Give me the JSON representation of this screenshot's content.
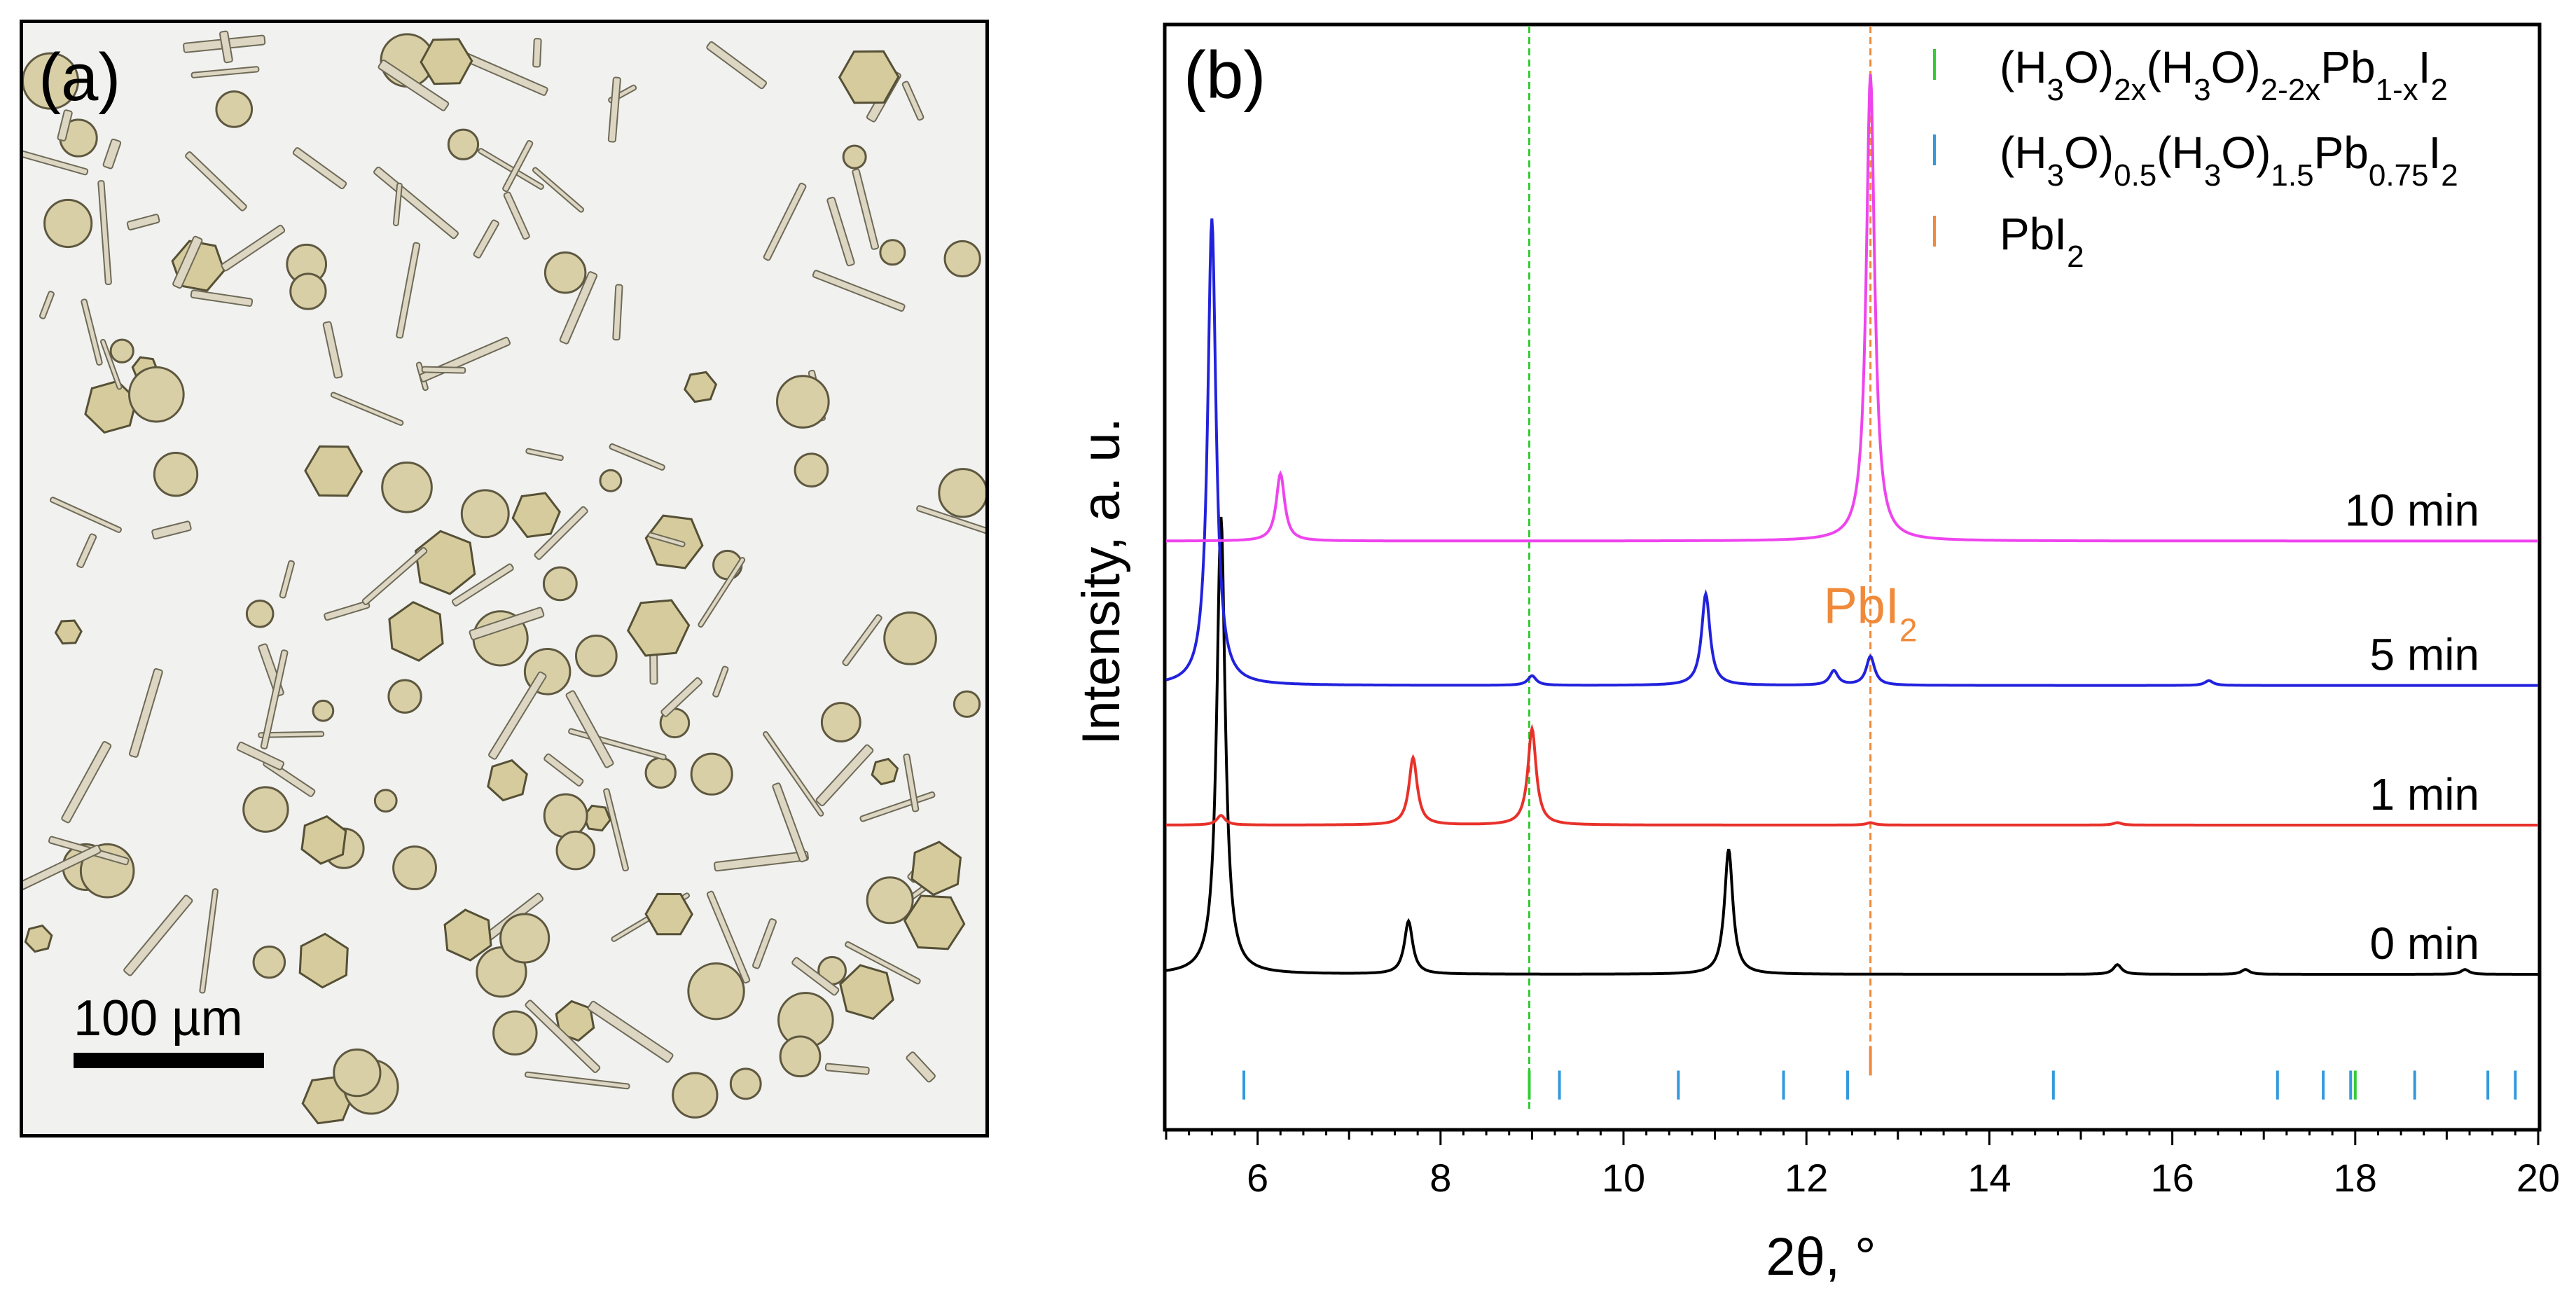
{
  "panel_a": {
    "label": "(a)",
    "scale_bar_label": "100 µm"
  },
  "chart_data": {
    "type": "line",
    "panel_label": "(b)",
    "xlabel": "2θ, °",
    "ylabel": "Intensity, a. u.",
    "xlim": [
      5,
      20
    ],
    "xticks": [
      6,
      8,
      10,
      12,
      14,
      16,
      18,
      20
    ],
    "grid": false,
    "legend_position": "top-right",
    "series": [
      {
        "name": "0 min",
        "color": "#000000",
        "baseline": 0,
        "peaks": [
          [
            5.6,
            0.95
          ],
          [
            7.65,
            0.11
          ],
          [
            11.15,
            0.26
          ],
          [
            15.4,
            0.02
          ],
          [
            16.8,
            0.01
          ],
          [
            19.2,
            0.01
          ]
        ]
      },
      {
        "name": "1 min",
        "color": "#e8312a",
        "baseline": 0.31,
        "peaks": [
          [
            5.6,
            0.02
          ],
          [
            7.7,
            0.14
          ],
          [
            9.0,
            0.2
          ],
          [
            12.7,
            0.005
          ],
          [
            15.4,
            0.005
          ]
        ]
      },
      {
        "name": "5 min",
        "color": "#2222dd",
        "baseline": 0.6,
        "peaks": [
          [
            5.5,
            0.97
          ],
          [
            9.0,
            0.02
          ],
          [
            10.9,
            0.19
          ],
          [
            12.3,
            0.03
          ],
          [
            12.7,
            0.06
          ],
          [
            16.4,
            0.01
          ]
        ]
      },
      {
        "name": "10 min",
        "color": "#ee44ee",
        "baseline": 0.9,
        "peaks": [
          [
            6.25,
            0.14
          ],
          [
            12.7,
            0.97
          ]
        ]
      }
    ],
    "annotations": [
      {
        "text_main": "PbI",
        "text_sub": "2",
        "x": 12.7,
        "y": 0.73,
        "color": "#f08a3a"
      }
    ],
    "reference_lines": [
      {
        "x": 8.97,
        "color": "#33cc33"
      },
      {
        "x": 12.7,
        "color": "#f08a3a"
      }
    ],
    "reference_ticks": {
      "green": {
        "color": "#33cc33",
        "positions": [
          8.97,
          18.0
        ]
      },
      "blue": {
        "color": "#3399dd",
        "positions": [
          5.85,
          9.3,
          10.6,
          11.75,
          12.45,
          14.7,
          17.15,
          17.65,
          17.95,
          18.65,
          19.45,
          19.75
        ]
      },
      "orange": {
        "color": "#f08a3a",
        "positions": [
          12.7
        ]
      }
    },
    "legend": [
      {
        "color": "#33cc33",
        "text": "(H3O)2x(H3O)2-2xPb1-xI2",
        "runs": [
          [
            "(H",
            ""
          ],
          [
            "3",
            "sub"
          ],
          [
            "O)",
            ""
          ],
          [
            "2x",
            "sub"
          ],
          [
            "(H",
            ""
          ],
          [
            "3",
            "sub"
          ],
          [
            "O)",
            ""
          ],
          [
            "2-2x",
            "sub"
          ],
          [
            "Pb",
            ""
          ],
          [
            "1-x",
            "sub"
          ],
          [
            "I",
            ""
          ],
          [
            "2",
            "sub"
          ]
        ]
      },
      {
        "color": "#3399dd",
        "text": "(H3O)0.5(H3O)1.5Pb0.75I2",
        "runs": [
          [
            "(H",
            ""
          ],
          [
            "3",
            "sub"
          ],
          [
            "O)",
            ""
          ],
          [
            "0.5",
            "sub"
          ],
          [
            "(H",
            ""
          ],
          [
            "3",
            "sub"
          ],
          [
            "O)",
            ""
          ],
          [
            "1.5",
            "sub"
          ],
          [
            "Pb",
            ""
          ],
          [
            "0.75",
            "sub"
          ],
          [
            "I",
            ""
          ],
          [
            "2",
            "sub"
          ]
        ]
      },
      {
        "color": "#f08a3a",
        "text": "PbI2",
        "runs": [
          [
            "PbI",
            ""
          ],
          [
            "2",
            "sub"
          ]
        ]
      }
    ]
  }
}
